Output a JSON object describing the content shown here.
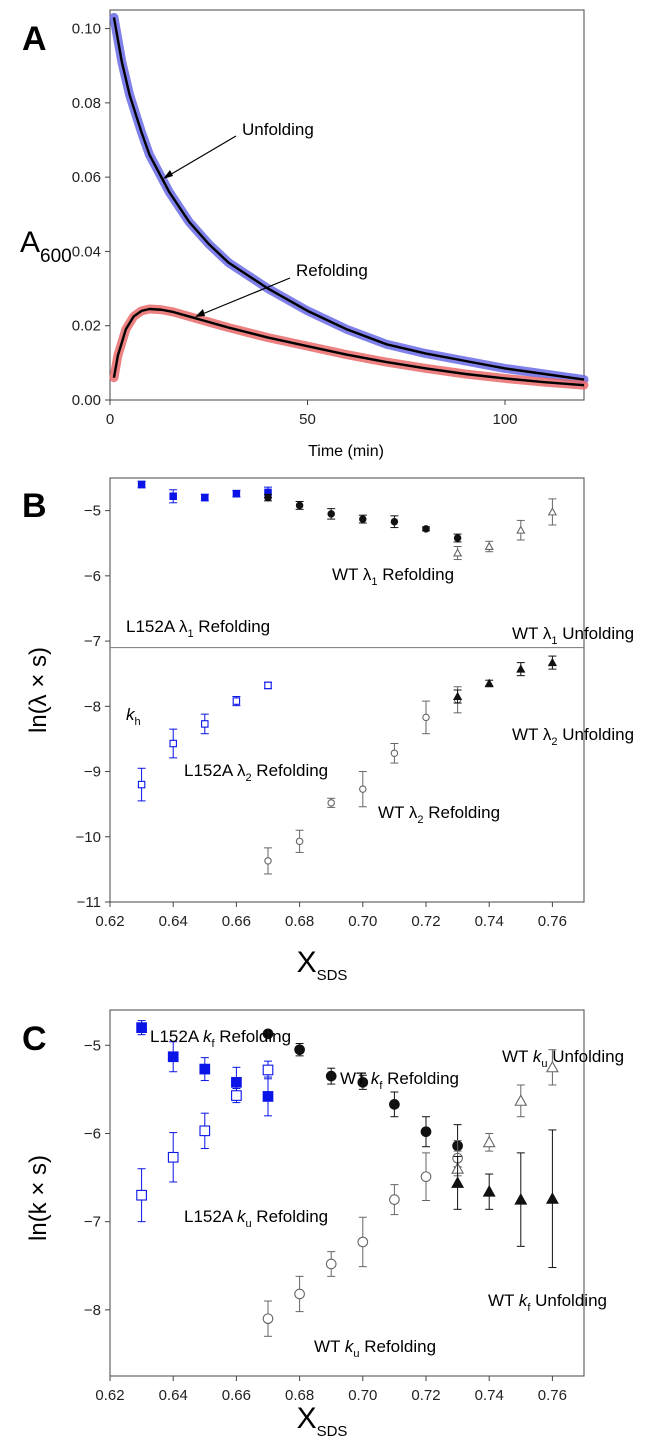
{
  "colors": {
    "unfolding_trace": "#6a6ae6",
    "refolding_trace": "#ea6a6a",
    "fit": "#000000",
    "l152a": "#0a14e6",
    "wt": "#111111",
    "wt_open": "#666666"
  },
  "chart_data": [
    {
      "panel": "A",
      "type": "line",
      "xlabel": "Time (min)",
      "ylabel_main": "A",
      "ylabel_sub": "600",
      "xlim": [
        0,
        120
      ],
      "ylim": [
        0,
        0.105
      ],
      "xticks": [
        0,
        50,
        100
      ],
      "yticks": [
        0.0,
        0.02,
        0.04,
        0.06,
        0.08,
        0.1
      ],
      "ytick_labels": [
        "0.00",
        "0.02",
        "0.04",
        "0.06",
        "0.08",
        "0.10"
      ],
      "series": [
        {
          "key": "unfolding",
          "color": "#6a6ae6",
          "x": [
            1,
            3,
            5,
            8,
            10,
            15,
            20,
            25,
            30,
            40,
            50,
            60,
            70,
            80,
            90,
            100,
            110,
            120
          ],
          "y": [
            0.103,
            0.091,
            0.082,
            0.072,
            0.066,
            0.056,
            0.048,
            0.042,
            0.037,
            0.03,
            0.024,
            0.019,
            0.015,
            0.0125,
            0.0105,
            0.0085,
            0.007,
            0.0055
          ]
        },
        {
          "key": "refolding",
          "color": "#ea6a6a",
          "x": [
            1,
            2,
            4,
            6,
            8,
            10,
            13,
            16,
            20,
            25,
            30,
            40,
            50,
            60,
            70,
            80,
            90,
            100,
            110,
            120
          ],
          "y": [
            0.006,
            0.012,
            0.019,
            0.0225,
            0.024,
            0.0245,
            0.0243,
            0.0237,
            0.0225,
            0.021,
            0.0195,
            0.0168,
            0.0145,
            0.0122,
            0.0102,
            0.0085,
            0.007,
            0.0058,
            0.0048,
            0.004
          ]
        }
      ],
      "annotations": [
        "Unfolding",
        "Refolding"
      ]
    },
    {
      "panel": "B",
      "type": "scatter",
      "xlabel_main": "X",
      "xlabel_sub": "SDS",
      "ylabel": "ln(λ × s)",
      "xlim": [
        0.62,
        0.77
      ],
      "ylim": [
        -11,
        -4.5
      ],
      "xticks": [
        0.62,
        0.64,
        0.66,
        0.68,
        0.7,
        0.72,
        0.74,
        0.76
      ],
      "xtick_labels": [
        "0.62",
        "0.64",
        "0.66",
        "0.68",
        "0.70",
        "0.72",
        "0.74",
        "0.76"
      ],
      "yticks": [
        -11,
        -10,
        -9,
        -8,
        -7,
        -6,
        -5
      ],
      "kh_level": -7.1,
      "series": [
        {
          "key": "l152a_l1_ref",
          "marker": "filled-square",
          "color": "#0a14e6",
          "size": "small",
          "x": [
            0.63,
            0.64,
            0.65,
            0.66,
            0.67
          ],
          "y": [
            -4.6,
            -4.78,
            -4.8,
            -4.74,
            -4.72
          ],
          "err": [
            0.05,
            0.1,
            0.05,
            0.05,
            0.08
          ]
        },
        {
          "key": "wt_l1_ref",
          "marker": "filled-circle",
          "color": "#111111",
          "size": "small",
          "x": [
            0.67,
            0.68,
            0.69,
            0.7,
            0.71,
            0.72,
            0.73
          ],
          "y": [
            -4.8,
            -4.92,
            -5.05,
            -5.13,
            -5.17,
            -5.28,
            -5.42
          ],
          "err": [
            0.05,
            0.06,
            0.08,
            0.06,
            0.09,
            0.03,
            0.06
          ]
        },
        {
          "key": "wt_l1_unf",
          "marker": "open-triangle",
          "color": "#666666",
          "size": "small",
          "x": [
            0.73,
            0.74,
            0.75,
            0.76
          ],
          "y": [
            -5.65,
            -5.55,
            -5.3,
            -5.02
          ],
          "err": [
            0.1,
            0.08,
            0.15,
            0.2
          ]
        },
        {
          "key": "l152a_l2_ref",
          "marker": "open-square",
          "color": "#0a14e6",
          "size": "small",
          "x": [
            0.63,
            0.64,
            0.65,
            0.66,
            0.67
          ],
          "y": [
            -9.2,
            -8.57,
            -8.27,
            -7.92,
            -7.68
          ],
          "err": [
            0.25,
            0.22,
            0.15,
            0.07,
            0.05
          ]
        },
        {
          "key": "wt_l2_ref",
          "marker": "open-circle",
          "color": "#666666",
          "size": "small",
          "x": [
            0.67,
            0.68,
            0.69,
            0.7,
            0.71,
            0.72,
            0.73
          ],
          "y": [
            -10.37,
            -10.07,
            -9.48,
            -9.27,
            -8.72,
            -8.17,
            -7.9
          ],
          "err": [
            0.2,
            0.17,
            0.07,
            0.27,
            0.15,
            0.25,
            0.2
          ]
        },
        {
          "key": "wt_l2_unf",
          "marker": "filled-triangle",
          "color": "#111111",
          "size": "small",
          "x": [
            0.73,
            0.74,
            0.75,
            0.76
          ],
          "y": [
            -7.85,
            -7.65,
            -7.43,
            -7.33
          ],
          "err": [
            0.1,
            0.05,
            0.1,
            0.1
          ]
        }
      ],
      "annotations": {
        "wt_l1_ref": [
          "WT λ",
          "1",
          "  Refolding"
        ],
        "l152a_l1_ref": [
          "L152A λ",
          "1",
          "  Refolding"
        ],
        "wt_l1_unf": [
          "WT λ",
          "1",
          "  Unfolding"
        ],
        "kh": [
          "k",
          "h"
        ],
        "wt_l2_unf": [
          "WT λ",
          "2",
          "  Unfolding"
        ],
        "l152a_l2_ref": [
          "L152A λ",
          "2",
          "  Refolding"
        ],
        "wt_l2_ref": [
          "WT λ",
          "2",
          "  Refolding"
        ]
      }
    },
    {
      "panel": "C",
      "type": "scatter",
      "xlabel_main": "X",
      "xlabel_sub": "SDS",
      "ylabel": "ln(k × s)",
      "xlim": [
        0.62,
        0.77
      ],
      "ylim": [
        -8.75,
        -4.6
      ],
      "xticks": [
        0.62,
        0.64,
        0.66,
        0.68,
        0.7,
        0.72,
        0.74,
        0.76
      ],
      "xtick_labels": [
        "0.62",
        "0.64",
        "0.66",
        "0.68",
        "0.70",
        "0.72",
        "0.74",
        "0.76"
      ],
      "yticks": [
        -8,
        -7,
        -6,
        -5
      ],
      "series": [
        {
          "key": "l152a_kf_ref",
          "marker": "filled-square",
          "color": "#0a14e6",
          "size": "large",
          "x": [
            0.63,
            0.64,
            0.65,
            0.66,
            0.67
          ],
          "y": [
            -4.8,
            -5.13,
            -5.27,
            -5.42,
            -5.58
          ],
          "err": [
            0.08,
            0.17,
            0.13,
            0.17,
            0.22
          ]
        },
        {
          "key": "l152a_ku_ref",
          "marker": "open-square",
          "color": "#0a14e6",
          "size": "large",
          "x": [
            0.63,
            0.64,
            0.65,
            0.66,
            0.67
          ],
          "y": [
            -6.7,
            -6.27,
            -5.97,
            -5.57,
            -5.28
          ],
          "err": [
            0.3,
            0.28,
            0.2,
            0.08,
            0.1
          ]
        },
        {
          "key": "wt_kf_ref",
          "marker": "filled-circle",
          "color": "#111111",
          "size": "large",
          "x": [
            0.67,
            0.68,
            0.69,
            0.7,
            0.71,
            0.72,
            0.73
          ],
          "y": [
            -4.87,
            -5.05,
            -5.35,
            -5.42,
            -5.67,
            -5.98,
            -6.14
          ],
          "err": [
            0,
            0.07,
            0.09,
            0.08,
            0.14,
            0.17,
            0.24
          ]
        },
        {
          "key": "wt_ku_ref",
          "marker": "open-circle",
          "color": "#666666",
          "size": "large",
          "x": [
            0.67,
            0.68,
            0.69,
            0.7,
            0.71,
            0.72,
            0.73
          ],
          "y": [
            -8.1,
            -7.82,
            -7.48,
            -7.23,
            -6.75,
            -6.49,
            -6.28
          ],
          "err": [
            0.2,
            0.2,
            0.14,
            0.28,
            0.17,
            0.27,
            0.2
          ]
        },
        {
          "key": "wt_ku_unf",
          "marker": "open-triangle",
          "color": "#666666",
          "size": "large",
          "x": [
            0.73,
            0.74,
            0.75,
            0.76
          ],
          "y": [
            -6.4,
            -6.1,
            -5.63,
            -5.25
          ],
          "err": [
            0.2,
            0.1,
            0.18,
            0.2
          ]
        },
        {
          "key": "wt_kf_unf",
          "marker": "filled-triangle",
          "color": "#111111",
          "size": "large",
          "x": [
            0.73,
            0.74,
            0.75,
            0.76
          ],
          "y": [
            -6.56,
            -6.66,
            -6.75,
            -6.74
          ],
          "err": [
            0.3,
            0.2,
            0.53,
            0.78
          ]
        }
      ],
      "annotations": {
        "l152a_kf_ref": [
          "L152A ",
          "k",
          "f",
          "  Refolding"
        ],
        "wt_kf_ref": [
          "WT ",
          "k",
          "f",
          "  Refolding"
        ],
        "wt_ku_unf": [
          "WT ",
          "k",
          "u",
          "  Unfolding"
        ],
        "l152a_ku_ref": [
          "L152A ",
          "k",
          "u",
          "  Refolding"
        ],
        "wt_kf_unf": [
          "WT ",
          "k",
          "f",
          "  Unfolding"
        ],
        "wt_ku_ref": [
          "WT ",
          "k",
          "u",
          "  Refolding"
        ]
      }
    }
  ]
}
